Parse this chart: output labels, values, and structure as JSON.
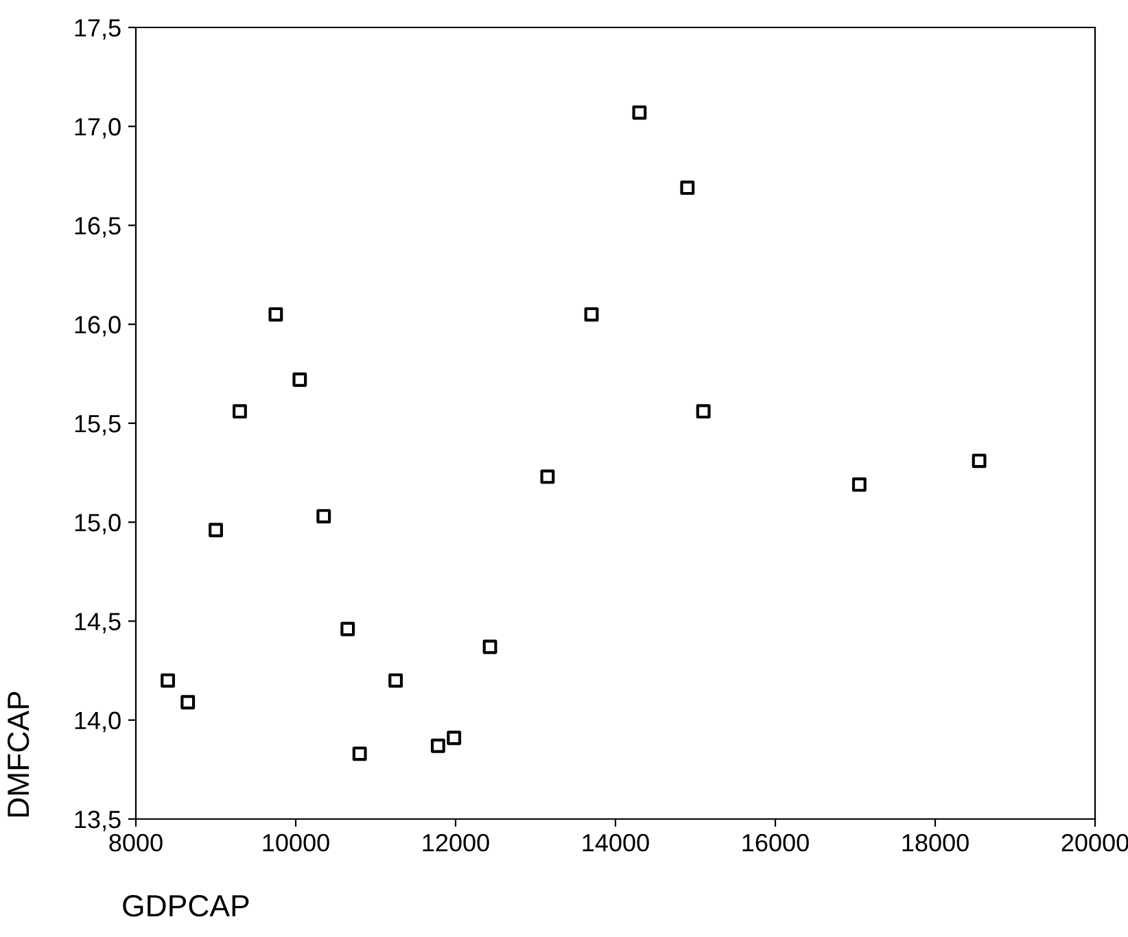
{
  "chart_data": {
    "type": "scatter",
    "xlabel": "GDPCAP",
    "ylabel": "DMFCAP",
    "x": [
      8400,
      8650,
      9000,
      9300,
      9750,
      10050,
      10350,
      10650,
      10800,
      11250,
      11780,
      11980,
      12430,
      13150,
      13700,
      14300,
      14900,
      15100,
      17050,
      18550
    ],
    "values": [
      14.2,
      14.09,
      14.96,
      15.56,
      16.05,
      15.72,
      15.03,
      14.46,
      13.83,
      14.2,
      13.87,
      13.91,
      14.37,
      15.23,
      16.05,
      17.07,
      16.69,
      15.56,
      15.19,
      15.31
    ],
    "color": "#000000",
    "marker": "square",
    "xlim": [
      8000,
      20000
    ],
    "xticks": [
      8000,
      10000,
      12000,
      14000,
      16000,
      18000,
      20000
    ],
    "ylim": [
      13.5,
      17.5
    ],
    "yticks": [
      {
        "value": 13.5,
        "label": "13,5"
      },
      {
        "value": 14.0,
        "label": "14,0"
      },
      {
        "value": 14.5,
        "label": "14,5"
      },
      {
        "value": 15.0,
        "label": "15,0"
      },
      {
        "value": 15.5,
        "label": "15,5"
      },
      {
        "value": 16.0,
        "label": "16,0"
      },
      {
        "value": 16.5,
        "label": "16,5"
      },
      {
        "value": 17.0,
        "label": "17,0"
      },
      {
        "value": 17.5,
        "label": "17,5"
      }
    ],
    "grid": false,
    "legend": false
  }
}
